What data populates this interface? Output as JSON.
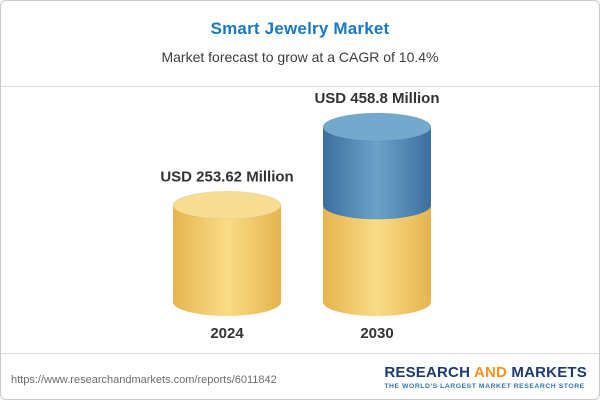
{
  "header": {
    "title": "Smart Jewelry Market",
    "subtitle": "Market forecast to grow at a CAGR of 10.4%"
  },
  "chart_data": {
    "type": "bar",
    "style": "3d-cylinder-stacked",
    "title": "Smart Jewelry Market",
    "subtitle": "Market forecast to grow at a CAGR of 10.4%",
    "cagr": "10.4%",
    "unit": "USD Million",
    "categories": [
      "2024",
      "2030"
    ],
    "values": [
      253.62,
      458.8
    ],
    "bar_labels": [
      "USD 253.62 Million",
      "USD 458.8 Million"
    ],
    "bars": [
      {
        "category": "2024",
        "label": "USD 253.62 Million",
        "total": 253.62,
        "segments": [
          {
            "color": "yellow",
            "value": 253.62
          }
        ]
      },
      {
        "category": "2030",
        "label": "USD 458.8 Million",
        "total": 458.8,
        "segments": [
          {
            "color": "yellow",
            "value": 253.62
          },
          {
            "color": "blue",
            "value": 205.18
          }
        ]
      }
    ],
    "palette": {
      "yellow": {
        "body_left": "#e6b44e",
        "body_mid": "#f9dc87",
        "top": "#f6dd92"
      },
      "blue": {
        "body_left": "#3c6f9f",
        "body_mid": "#6ba2c9",
        "top": "#74a8cd"
      }
    },
    "label_color": "#333333",
    "xlabel": "",
    "ylabel": "",
    "ylim": [
      0,
      458.8
    ],
    "grid": false,
    "legend": false
  },
  "footer": {
    "url": "https://www.researchandmarkets.com/reports/6011842",
    "logo": {
      "word1": "RESEARCH",
      "word2": "AND",
      "word3": "MARKETS",
      "tagline": "THE WORLD'S LARGEST MARKET RESEARCH STORE"
    }
  },
  "colors": {
    "title_blue": "#1a78c2",
    "logo_navy": "#1f3a6e",
    "logo_orange": "#f7941d",
    "tagline_blue": "#2e75b6"
  }
}
